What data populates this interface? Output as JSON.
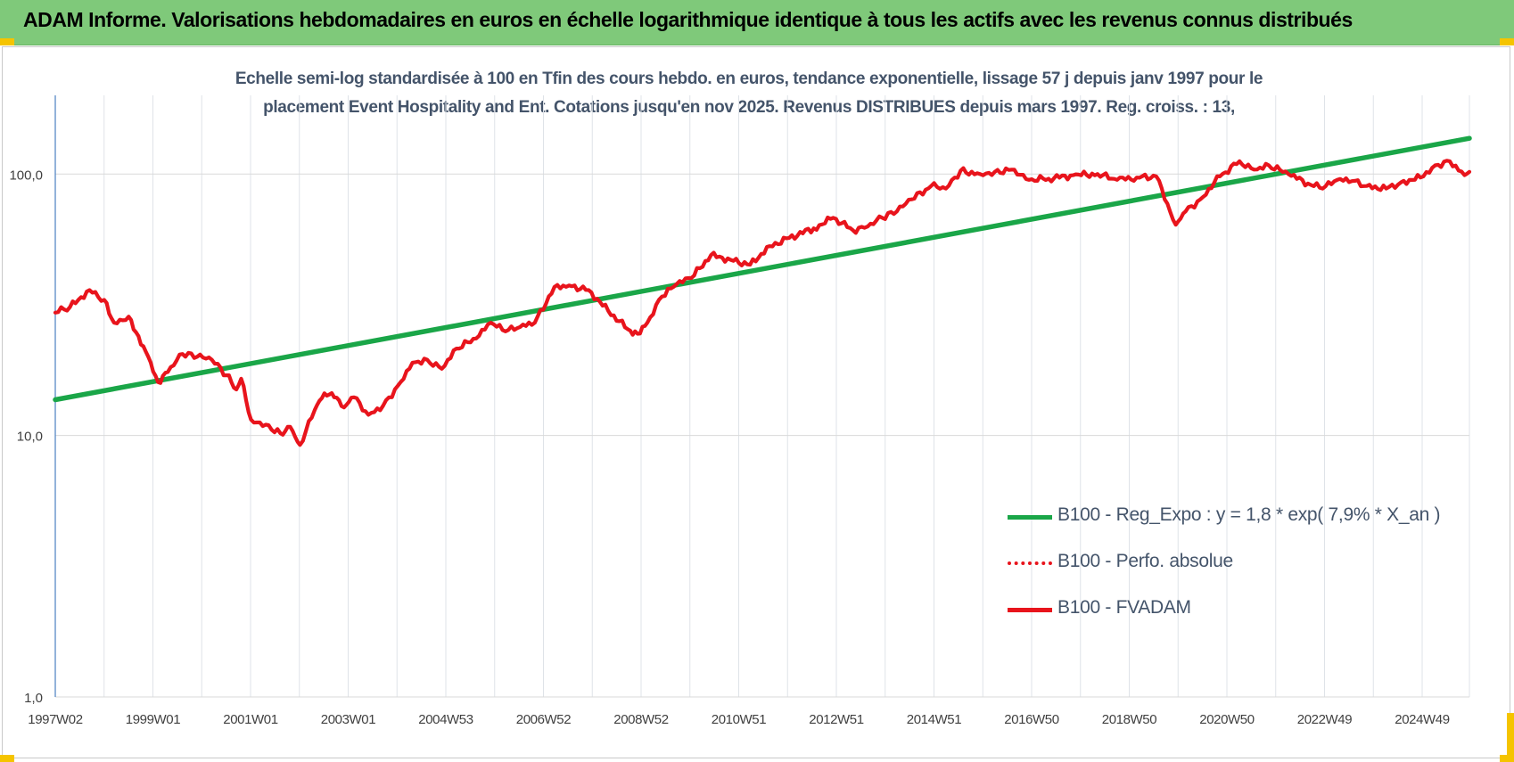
{
  "header": {
    "title": "ADAM Informe. Valorisations hebdomadaires en euros en échelle logarithmique identique à tous les actifs avec les revenus connus distribués"
  },
  "chart_data": {
    "type": "line",
    "title_line1": "Echelle semi-log standardisée à 100 en Tfin des cours hebdo. en euros, tendance exponentielle, lissage 57 j depuis janv 1997 pour le",
    "title_line2": "placement Event Hospitality and Ent. Cotations jusqu'en nov 2025.  Revenus DISTRIBUES depuis mars 1997. Reg. croiss. : 13,",
    "xlabel": "",
    "ylabel": "",
    "y_scale": "log",
    "ylim": [
      1,
      200
    ],
    "y_ticks": [
      "1,0",
      "10,0",
      "100,0"
    ],
    "x_tick_labels": [
      "1997W02",
      "1999W01",
      "2001W01",
      "2003W01",
      "2004W53",
      "2006W52",
      "2008W52",
      "2010W51",
      "2012W51",
      "2014W51",
      "2016W50",
      "2018W50",
      "2020W50",
      "2022W49",
      "2024W49"
    ],
    "x_range_years": [
      1997.0,
      2025.9
    ],
    "grid": true,
    "legend_position": "bottom-right",
    "series": [
      {
        "name": "B100 - Reg_Expo : y = 1,8 * exp( 7,9% *  X_an )",
        "color": "#1aa648",
        "style": "solid",
        "x": [
          1997.0,
          2025.9
        ],
        "values": [
          13.7,
          137.0
        ]
      },
      {
        "name": "B100 - Perfo. absolue",
        "color": "#e8141c",
        "style": "dotted",
        "x": [],
        "values": []
      },
      {
        "name": "B100 - FVADAM",
        "color": "#e8141c",
        "style": "solid",
        "x": [
          1997.0,
          1997.3,
          1997.7,
          1998.0,
          1998.2,
          1998.5,
          1998.7,
          1998.9,
          1999.1,
          1999.3,
          1999.6,
          1999.9,
          2000.2,
          2000.5,
          2000.7,
          2000.8,
          2001.0,
          2001.3,
          2001.6,
          2001.8,
          2002.0,
          2002.3,
          2002.5,
          2002.7,
          2002.9,
          2003.1,
          2003.4,
          2003.7,
          2004.0,
          2004.3,
          2004.6,
          2004.9,
          2005.2,
          2005.6,
          2005.9,
          2006.2,
          2006.5,
          2006.8,
          2007.2,
          2007.5,
          2007.9,
          2008.3,
          2008.7,
          2008.9,
          2009.1,
          2009.4,
          2009.7,
          2010.0,
          2010.4,
          2010.8,
          2011.2,
          2011.6,
          2012.0,
          2012.5,
          2012.9,
          2013.3,
          2013.6,
          2013.9,
          2014.2,
          2014.5,
          2014.9,
          2015.2,
          2015.5,
          2015.9,
          2016.2,
          2016.6,
          2016.9,
          2017.3,
          2017.8,
          2018.3,
          2018.7,
          2019.1,
          2019.5,
          2019.9,
          2020.1,
          2020.4,
          2020.8,
          2021.2,
          2021.5,
          2021.8,
          2022.2,
          2022.6,
          2022.9,
          2023.2,
          2023.5,
          2023.8,
          2024.2,
          2024.5,
          2024.9,
          2025.2,
          2025.5,
          2025.8,
          2025.9
        ],
        "values": [
          29.5,
          31.0,
          36.0,
          33.0,
          27.0,
          28.5,
          24.0,
          20.0,
          16.0,
          17.5,
          20.5,
          20.0,
          19.5,
          17.0,
          15.0,
          16.5,
          11.5,
          11.0,
          10.2,
          10.8,
          9.2,
          12.5,
          14.5,
          14.0,
          12.8,
          14.0,
          12.0,
          13.0,
          15.5,
          19.0,
          19.5,
          18.0,
          21.5,
          23.5,
          27.0,
          25.0,
          26.0,
          27.0,
          37.0,
          37.5,
          36.0,
          30.0,
          25.5,
          24.5,
          27.0,
          34.0,
          38.0,
          40.0,
          49.0,
          47.0,
          45.0,
          53.0,
          57.0,
          62.0,
          68.0,
          61.0,
          63.0,
          68.0,
          72.0,
          80.0,
          90.0,
          88.0,
          103.0,
          100.0,
          102.0,
          104.0,
          95.0,
          96.0,
          99.0,
          100.0,
          95.0,
          97.0,
          98.0,
          64.0,
          72.0,
          80.0,
          98.0,
          112.0,
          104.0,
          108.0,
          100.0,
          92.0,
          88.0,
          95.0,
          94.0,
          90.0,
          88.0,
          93.0,
          97.0,
          108.0,
          112.0,
          99.0,
          102.0
        ]
      }
    ]
  }
}
